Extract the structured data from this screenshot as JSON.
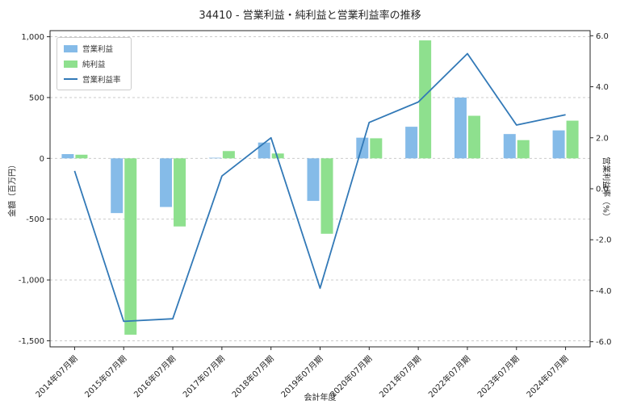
{
  "colors": {
    "background": "#ffffff",
    "grid": "#c4c4c4",
    "axis": "#262626",
    "tick_text": "#262626"
  },
  "chart_data": {
    "type": "bar+line",
    "title": "34410 - 営業利益・純利益と営業利益率の推移",
    "xlabel": "会計年度",
    "ylabel_left": "金額（百万円）",
    "ylabel_right": "営業利益率（%）",
    "categories": [
      "2014年07月期",
      "2015年07月期",
      "2016年07月期",
      "2017年07月期",
      "2018年07月期",
      "2019年07月期",
      "2020年07月期",
      "2021年07月期",
      "2022年07月期",
      "2023年07月期",
      "2024年07月期"
    ],
    "series": [
      {
        "name": "営業利益",
        "type": "bar",
        "axis": "left",
        "color": "#85bbe8",
        "values": [
          35,
          -450,
          -400,
          5,
          130,
          -350,
          170,
          260,
          500,
          200,
          230
        ]
      },
      {
        "name": "純利益",
        "type": "bar",
        "axis": "left",
        "color": "#8ee08e",
        "values": [
          30,
          -1450,
          -560,
          60,
          40,
          -620,
          165,
          970,
          350,
          150,
          310
        ]
      },
      {
        "name": "営業利益率",
        "type": "line",
        "axis": "right",
        "color": "#3279b7",
        "values": [
          0.7,
          -5.2,
          -5.1,
          0.5,
          2.0,
          -3.9,
          2.6,
          3.4,
          5.3,
          2.5,
          2.9
        ]
      }
    ],
    "left_axis": {
      "ticks": [
        1000,
        500,
        0,
        -500,
        -1000,
        -1500
      ],
      "tick_labels": [
        "1,000",
        "500",
        "0",
        "-500",
        "-1,000",
        "-1,500"
      ],
      "range": [
        -1550,
        1050
      ]
    },
    "right_axis": {
      "ticks": [
        6,
        4,
        2,
        0,
        -2,
        -4,
        -6
      ],
      "tick_labels": [
        "6.0",
        "4.0",
        "2.0",
        "0.0",
        "-2.0",
        "-4.0",
        "-6.0"
      ],
      "range": [
        -6.2,
        6.2
      ]
    },
    "grid": true,
    "legend_position": "upper-left"
  }
}
